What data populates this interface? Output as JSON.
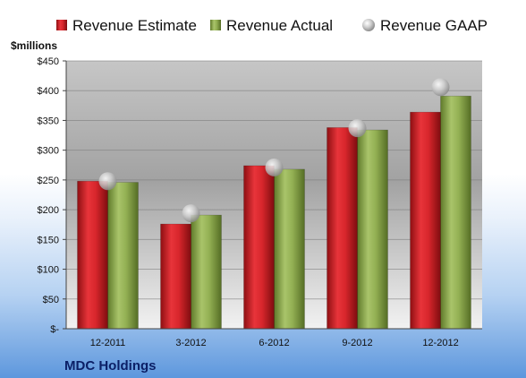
{
  "chart_data": {
    "type": "bar",
    "legend_position": "top",
    "unit_label": "$millions",
    "company": "MDC Holdings",
    "categories": [
      "12-2011",
      "3-2012",
      "6-2012",
      "9-2012",
      "12-2012"
    ],
    "series": [
      {
        "name": "Revenue Estimate",
        "kind": "bar",
        "color": "#cc1f25",
        "values": [
          248,
          176,
          274,
          338,
          364
        ]
      },
      {
        "name": "Revenue Actual",
        "kind": "bar",
        "color": "#8fab4e",
        "values": [
          246,
          191,
          268,
          334,
          391
        ]
      },
      {
        "name": "Revenue GAAP",
        "kind": "marker",
        "color": "#b3b3b3",
        "values": [
          248,
          194,
          271,
          337,
          406
        ]
      }
    ],
    "ylim": [
      0,
      450
    ],
    "yticks": [
      {
        "value": 0,
        "label": "$-"
      },
      {
        "value": 50,
        "label": "$50"
      },
      {
        "value": 100,
        "label": "$100"
      },
      {
        "value": 150,
        "label": "$150"
      },
      {
        "value": 200,
        "label": "$200"
      },
      {
        "value": 250,
        "label": "$250"
      },
      {
        "value": 300,
        "label": "$300"
      },
      {
        "value": 350,
        "label": "$350"
      },
      {
        "value": 400,
        "label": "$400"
      },
      {
        "value": 450,
        "label": "$450"
      }
    ],
    "grid": true
  }
}
